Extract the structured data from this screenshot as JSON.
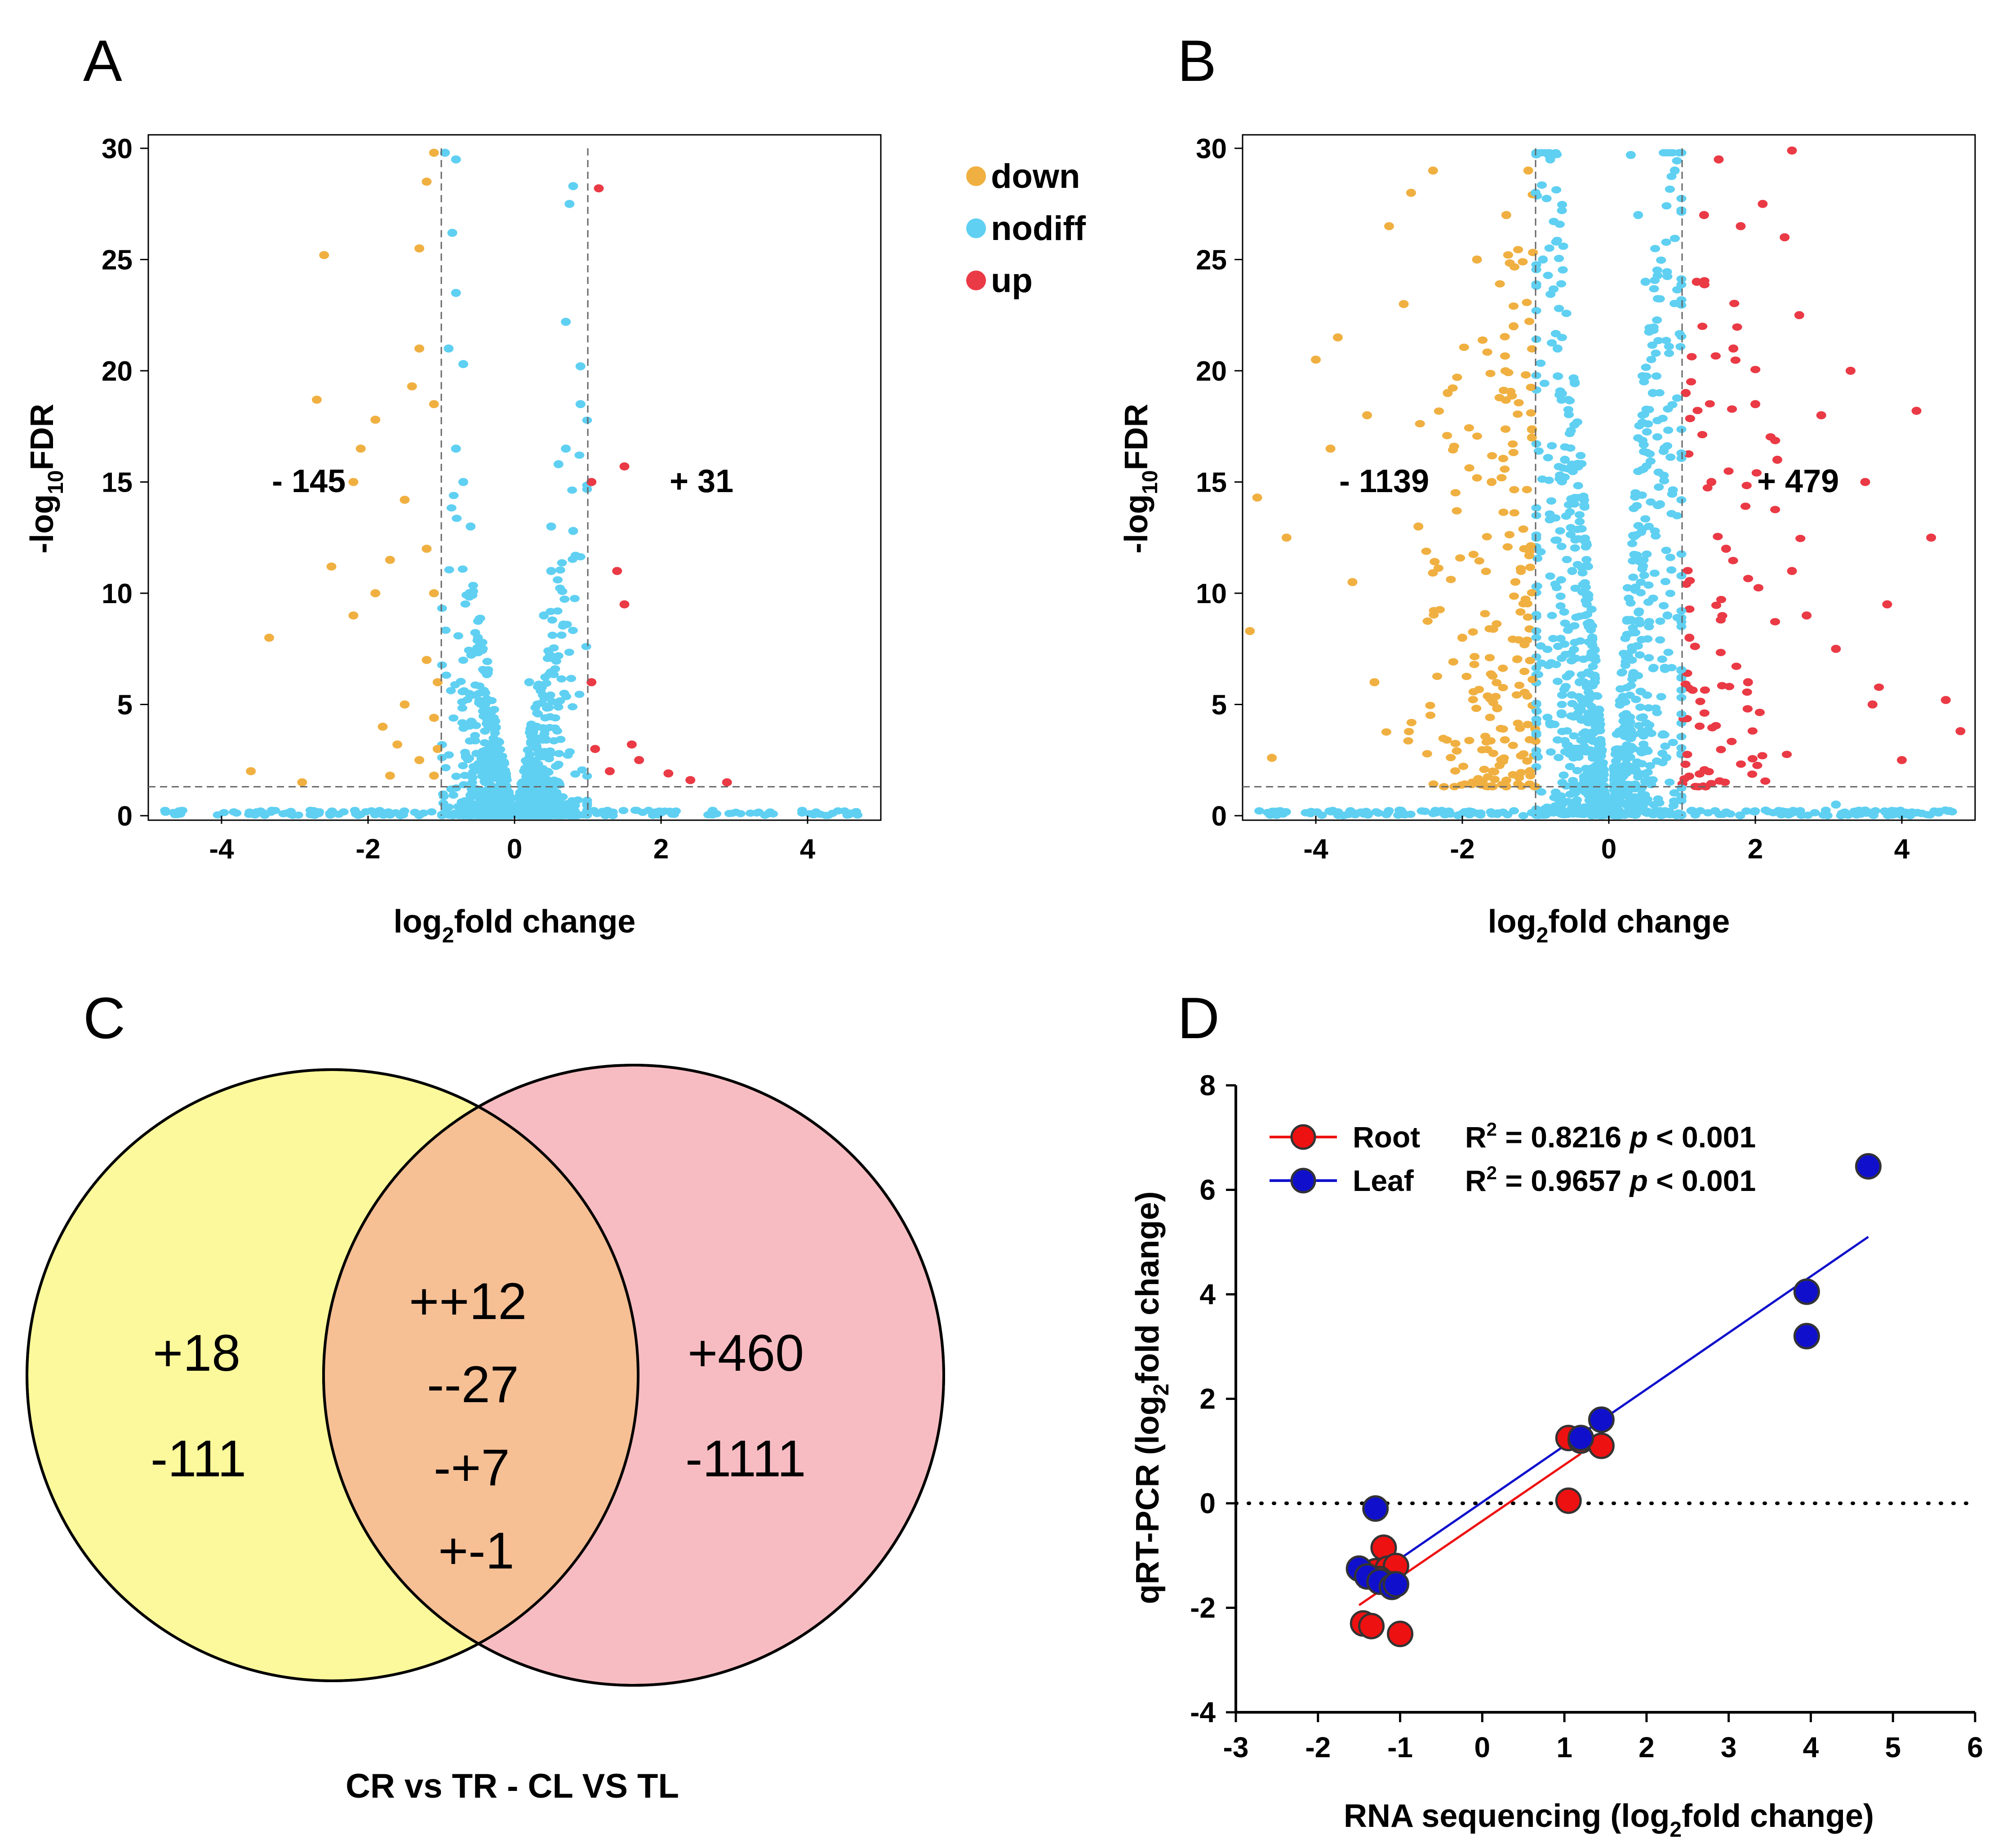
{
  "colors": {
    "down": "#f0b041",
    "nodiff": "#5fd0f2",
    "up": "#ea3a45",
    "venn_left": "#fbf99b",
    "venn_right": "#f7bcc1",
    "venn_overlap": "#f6bf94",
    "root": "#ee1111",
    "leaf": "#1010cc"
  },
  "legend": {
    "down": "down",
    "nodiff": "nodiff",
    "up": "up"
  },
  "chart_data": [
    {
      "id": "A",
      "type": "scatter",
      "title": "A",
      "xlabel": "log2fold change",
      "ylabel": "-log10FDR",
      "xlim": [
        -5,
        5
      ],
      "ylim": [
        0,
        30
      ],
      "xticks": [
        -4,
        -2,
        0,
        2,
        4
      ],
      "yticks": [
        0,
        5,
        10,
        15,
        20,
        25,
        30
      ],
      "thresholds": {
        "x": [
          -1,
          1
        ],
        "y": 1.3
      },
      "down_count": "- 145",
      "up_count": "+ 31",
      "series": [
        {
          "name": "down",
          "points": [
            [
              -3.35,
              8
            ],
            [
              -3.6,
              2
            ],
            [
              -2.9,
              1.5
            ],
            [
              -2.6,
              25.2
            ],
            [
              -2.7,
              18.7
            ],
            [
              -2.5,
              11.2
            ],
            [
              -2.2,
              9
            ],
            [
              -2.2,
              15
            ],
            [
              -2.1,
              16.5
            ],
            [
              -1.9,
              17.8
            ],
            [
              -1.9,
              10
            ],
            [
              -1.8,
              4
            ],
            [
              -1.7,
              11.5
            ],
            [
              -1.7,
              1.8
            ],
            [
              -1.6,
              3.2
            ],
            [
              -1.5,
              5
            ],
            [
              -1.5,
              14.2
            ],
            [
              -1.4,
              19.3
            ],
            [
              -1.3,
              21
            ],
            [
              -1.3,
              25.5
            ],
            [
              -1.3,
              2.5
            ],
            [
              -1.2,
              28.5
            ],
            [
              -1.2,
              12
            ],
            [
              -1.2,
              7
            ],
            [
              -1.1,
              29.8
            ],
            [
              -1.1,
              18.5
            ],
            [
              -1.1,
              10
            ],
            [
              -1.1,
              4.4
            ],
            [
              -1.1,
              1.8
            ],
            [
              -1.05,
              3
            ],
            [
              -1.05,
              6
            ]
          ]
        },
        {
          "name": "up",
          "points": [
            [
              1.05,
              15
            ],
            [
              1.05,
              6
            ],
            [
              1.1,
              3
            ],
            [
              1.15,
              28.2
            ],
            [
              1.3,
              2
            ],
            [
              1.4,
              11
            ],
            [
              1.5,
              15.7
            ],
            [
              1.5,
              9.5
            ],
            [
              1.6,
              3.2
            ],
            [
              1.7,
              2.5
            ],
            [
              2.1,
              1.9
            ],
            [
              2.4,
              1.6
            ],
            [
              2.9,
              1.5
            ]
          ]
        },
        {
          "name": "nodiff",
          "points": [
            [
              -0.95,
              29.8
            ],
            [
              -0.8,
              29.5
            ],
            [
              -0.85,
              26.2
            ],
            [
              -0.8,
              23.5
            ],
            [
              -0.9,
              21
            ],
            [
              -0.7,
              20.3
            ],
            [
              -0.8,
              16.5
            ],
            [
              -0.7,
              15
            ],
            [
              -0.6,
              13
            ],
            [
              -0.6,
              10
            ],
            [
              -0.5,
              8
            ],
            [
              -0.4,
              5
            ],
            [
              0.2,
              6
            ],
            [
              0.3,
              4
            ],
            [
              0.4,
              9
            ],
            [
              0.5,
              13
            ],
            [
              0.6,
              15.8
            ],
            [
              0.7,
              16.5
            ],
            [
              0.7,
              22.2
            ],
            [
              0.75,
              27.5
            ],
            [
              0.8,
              28.3
            ],
            [
              0.9,
              20.2
            ],
            [
              0.9,
              18.5
            ],
            [
              0.5,
              11
            ],
            [
              0.8,
              12.8
            ]
          ]
        }
      ]
    },
    {
      "id": "B",
      "type": "scatter",
      "title": "B",
      "xlabel": "log2fold change",
      "ylabel": "-log10FDR",
      "xlim": [
        -5,
        5
      ],
      "ylim": [
        0,
        30
      ],
      "xticks": [
        -4,
        -2,
        0,
        2,
        4
      ],
      "yticks": [
        0,
        5,
        10,
        15,
        20,
        25,
        30
      ],
      "thresholds": {
        "x": [
          -1,
          1
        ],
        "y": 1.3
      },
      "down_count": "- 1139",
      "up_count": "+ 479",
      "series": [
        {
          "name": "down",
          "points": [
            [
              -4.9,
              8.3
            ],
            [
              -4.8,
              14.3
            ],
            [
              -4.6,
              2.6
            ],
            [
              -4.4,
              12.5
            ],
            [
              -4.0,
              20.5
            ],
            [
              -3.8,
              16.5
            ],
            [
              -3.7,
              21.5
            ],
            [
              -3.5,
              10.5
            ],
            [
              -3.3,
              18
            ],
            [
              -3.2,
              6
            ],
            [
              -3.0,
              26.5
            ],
            [
              -2.8,
              23
            ],
            [
              -2.7,
              28
            ],
            [
              -2.6,
              13
            ],
            [
              -2.4,
              29
            ],
            [
              -2.2,
              19
            ],
            [
              -2.0,
              8
            ],
            [
              -1.8,
              25
            ],
            [
              -1.6,
              15
            ],
            [
              -1.4,
              27
            ],
            [
              -1.3,
              22
            ],
            [
              -1.2,
              11
            ],
            [
              -1.1,
              29
            ],
            [
              -1.05,
              17
            ]
          ]
        },
        {
          "name": "up",
          "points": [
            [
              1.05,
              19
            ],
            [
              1.1,
              8
            ],
            [
              1.2,
              24
            ],
            [
              1.3,
              27
            ],
            [
              1.4,
              15
            ],
            [
              1.5,
              29.5
            ],
            [
              1.6,
              12
            ],
            [
              1.7,
              21
            ],
            [
              1.8,
              26.5
            ],
            [
              1.9,
              6
            ],
            [
              2.0,
              18.5
            ],
            [
              2.1,
              27.5
            ],
            [
              2.3,
              16
            ],
            [
              2.4,
              26
            ],
            [
              2.5,
              11
            ],
            [
              2.6,
              22.5
            ],
            [
              2.7,
              9
            ],
            [
              2.9,
              18
            ],
            [
              3.1,
              7.5
            ],
            [
              3.3,
              20
            ],
            [
              3.5,
              15
            ],
            [
              3.6,
              5
            ],
            [
              3.8,
              9.5
            ],
            [
              4.0,
              2.5
            ],
            [
              4.2,
              18.2
            ],
            [
              4.4,
              12.5
            ],
            [
              4.6,
              5.2
            ],
            [
              4.8,
              3.8
            ],
            [
              2.5,
              29.9
            ]
          ]
        },
        {
          "name": "nodiff",
          "points": [
            [
              -1,
              28
            ],
            [
              -0.9,
              25
            ],
            [
              -0.7,
              21
            ],
            [
              -0.6,
              16
            ],
            [
              -0.5,
              11
            ],
            [
              -0.4,
              6
            ],
            [
              0.3,
              29.7
            ],
            [
              0.4,
              27
            ],
            [
              0.5,
              24
            ],
            [
              0.6,
              19
            ],
            [
              0.7,
              14
            ],
            [
              0.8,
              9
            ],
            [
              0.9,
              29
            ],
            [
              -0.8,
              29.5
            ],
            [
              3.1,
              0.5
            ],
            [
              -4.5,
              0.2
            ]
          ]
        }
      ]
    },
    {
      "id": "D",
      "type": "scatter",
      "title": "D",
      "xlabel": "RNA sequencing (log2fold change)",
      "ylabel": "qRT-PCR (log2fold change)",
      "xlim": [
        -3,
        6
      ],
      "ylim": [
        -4,
        8
      ],
      "xticks": [
        -3,
        -2,
        -1,
        0,
        1,
        2,
        3,
        4,
        5,
        6
      ],
      "yticks": [
        -4,
        -2,
        0,
        2,
        4,
        6,
        8
      ],
      "series": [
        {
          "name": "Root",
          "r2_label": "R² = 0.8216",
          "p_label": "p < 0.001",
          "points": [
            [
              -1.45,
              -2.3
            ],
            [
              -1.35,
              -2.35
            ],
            [
              -1.0,
              -2.5
            ],
            [
              -1.2,
              -0.85
            ],
            [
              -1.3,
              -1.3
            ],
            [
              -1.15,
              -1.25
            ],
            [
              -1.05,
              -1.2
            ],
            [
              -1.25,
              -1.45
            ],
            [
              -1.1,
              -1.55
            ],
            [
              1.05,
              1.25
            ],
            [
              1.2,
              1.2
            ],
            [
              1.45,
              1.1
            ],
            [
              1.05,
              0.05
            ]
          ],
          "fit": [
            [
              -1.5,
              -1.95
            ],
            [
              1.2,
              0.95
            ]
          ]
        },
        {
          "name": "Leaf",
          "r2_label": "R² = 0.9657",
          "p_label": "p < 0.001",
          "points": [
            [
              -1.3,
              -0.1
            ],
            [
              -1.5,
              -1.25
            ],
            [
              -1.4,
              -1.4
            ],
            [
              -1.25,
              -1.5
            ],
            [
              -1.1,
              -1.6
            ],
            [
              -1.05,
              -1.55
            ],
            [
              1.2,
              1.25
            ],
            [
              1.45,
              1.6
            ],
            [
              3.95,
              4.05
            ],
            [
              3.95,
              3.2
            ],
            [
              4.7,
              6.45
            ]
          ],
          "fit": [
            [
              -1.5,
              -1.6
            ],
            [
              4.7,
              5.1
            ]
          ]
        }
      ],
      "zero_line": true
    }
  ],
  "venn": {
    "caption": "CR vs TR - CL VS TL",
    "left": [
      "+18",
      "-111"
    ],
    "right": [
      "+460",
      "-1111"
    ],
    "overlap": [
      "++12",
      "--27",
      "-+7",
      "+-1"
    ]
  },
  "labels": {
    "panel_a": "A",
    "panel_b": "B",
    "panel_c": "C",
    "panel_d": "D",
    "log2": "log",
    "log2_sub": "2",
    "fold_change": "fold change",
    "neglog": "-log",
    "neglog_sub": "10",
    "fdr": "FDR",
    "qrt_prefix": "qRT-PCR (log",
    "qrt_sub": "2",
    "qrt_suffix": "fold change)",
    "rna_prefix": "RNA sequencing (log",
    "rna_sub": "2",
    "rna_suffix": "fold change)",
    "r2_sup": "2",
    "root_r_prefix": "R",
    "root_r_rest": " = 0.8216 ",
    "root_p": "p",
    "root_p_rest": " < 0.001",
    "leaf_r_prefix": "R",
    "leaf_r_rest": " = 0.9657 ",
    "leaf_p": "p",
    "leaf_p_rest": " < 0.001",
    "root": "Root",
    "leaf": "Leaf"
  }
}
